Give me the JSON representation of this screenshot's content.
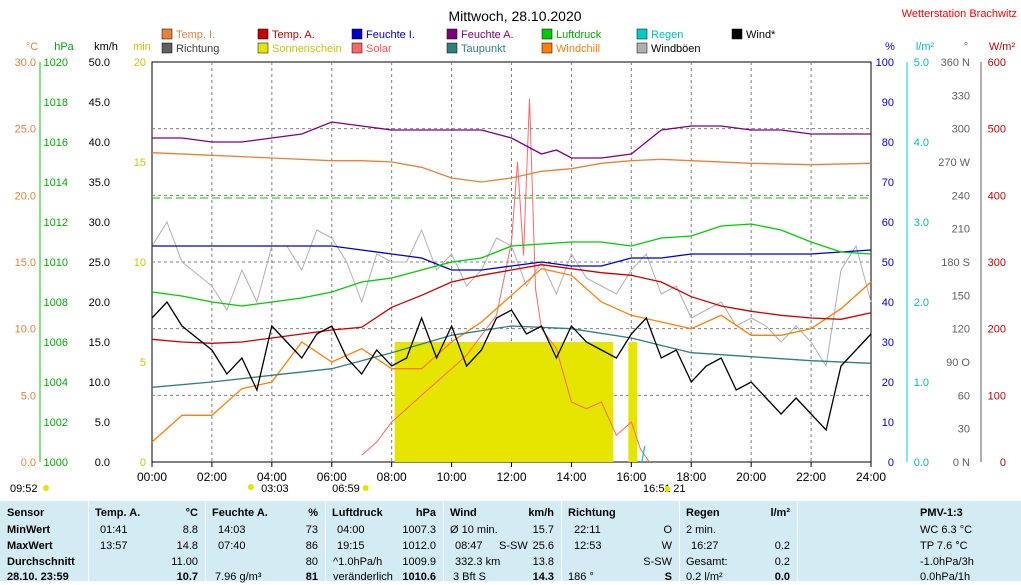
{
  "header": {
    "title": "Mittwoch, 28.10.2020",
    "station": "Wetterstation Brachwitz"
  },
  "colors": {
    "temp_in": "#e8803a",
    "temp_out": "#cc0000",
    "hum_in": "#0000cc",
    "hum_out": "#800080",
    "pressure": "#00cc00",
    "rain": "#00cccc",
    "wind": "#000000",
    "direction": "#606060",
    "sunshine": "#e5e500",
    "solar": "#ff6666",
    "dewpoint": "#2f7f7f",
    "windchill": "#ff8000",
    "gust": "#b0b0b0",
    "table_bg": "#d3ecf4"
  },
  "legend": [
    {
      "label": "Temp. I.",
      "color": "#e8803a",
      "text_color": "#e8803a"
    },
    {
      "label": "Temp. A.",
      "color": "#cc0000",
      "text_color": "#cc0000"
    },
    {
      "label": "Feuchte I.",
      "color": "#0000cc",
      "text_color": "#0000cc"
    },
    {
      "label": "Feuchte A.",
      "color": "#800080",
      "text_color": "#800080"
    },
    {
      "label": "Luftdruck",
      "color": "#00cc00",
      "text_color": "#00aa00"
    },
    {
      "label": "Regen",
      "color": "#00cccc",
      "text_color": "#00bbbb"
    },
    {
      "label": "Wind*",
      "color": "#000000",
      "text_color": "#000000"
    },
    {
      "label": "Richtung",
      "color": "#606060",
      "text_color": "#404040"
    },
    {
      "label": "Sonnenschein",
      "color": "#e5e500",
      "text_color": "#c8c800"
    },
    {
      "label": "Solar",
      "color": "#ff6666",
      "text_color": "#ff5050"
    },
    {
      "label": "Taupunkt",
      "color": "#2f7f7f",
      "text_color": "#2f7f7f"
    },
    {
      "label": "Windchill",
      "color": "#ff8000",
      "text_color": "#ff8000"
    },
    {
      "label": "Windböen",
      "color": "#b0b0b0",
      "text_color": "#000000"
    }
  ],
  "chart_data": {
    "type": "line",
    "title": "Mittwoch, 28.10.2020",
    "x_ticks": [
      "00:00",
      "02:00",
      "04:00",
      "06:00",
      "08:00",
      "10:00",
      "12:00",
      "14:00",
      "16:00",
      "18:00",
      "20:00",
      "22:00",
      "24:00"
    ],
    "xlim": [
      0,
      24
    ],
    "axes": [
      {
        "unit": "°C",
        "range": [
          0,
          30
        ],
        "ticks": [
          "0.0",
          "5.0",
          "10.0",
          "15.0",
          "20.0",
          "25.0",
          "30.0"
        ],
        "color": "#e8803a"
      },
      {
        "unit": "hPa",
        "range": [
          1000,
          1020
        ],
        "ticks": [
          "1000",
          "1002",
          "1004",
          "1006",
          "1008",
          "1010",
          "1012",
          "1014",
          "1016",
          "1018",
          "1020"
        ],
        "color": "#00aa00"
      },
      {
        "unit": "km/h",
        "range": [
          0,
          50
        ],
        "ticks": [
          "0.0",
          "5.0",
          "10.0",
          "15.0",
          "20.0",
          "25.0",
          "30.0",
          "35.0",
          "40.0",
          "45.0",
          "50.0"
        ],
        "color": "#000000"
      },
      {
        "unit": "min",
        "range": [
          0,
          20
        ],
        "ticks": [
          "0",
          "5",
          "10",
          "15",
          "20"
        ],
        "color": "#c8c800"
      },
      {
        "unit": "%",
        "range": [
          0,
          100
        ],
        "ticks": [
          "0",
          "10",
          "20",
          "30",
          "40",
          "50",
          "60",
          "70",
          "80",
          "90",
          "100"
        ],
        "color": "#0000cc"
      },
      {
        "unit": "l/m²",
        "range": [
          0,
          5
        ],
        "ticks": [
          "0.0",
          "1.0",
          "2.0",
          "3.0",
          "4.0",
          "5.0"
        ],
        "color": "#00bbbb"
      },
      {
        "unit": "°",
        "range": [
          0,
          360
        ],
        "ticks": [
          "0 N",
          "30",
          "60",
          "90 O",
          "120",
          "150",
          "180 S",
          "210",
          "240",
          "270 W",
          "300",
          "330",
          "360 N"
        ],
        "color": "#606060"
      },
      {
        "unit": "W/m²",
        "range": [
          0,
          600
        ],
        "ticks": [
          "0",
          "100",
          "200",
          "300",
          "400",
          "500",
          "600"
        ],
        "color": "#cc0000"
      }
    ],
    "series": [
      {
        "name": "Temp. I.",
        "axis": "°C",
        "x": [
          0,
          2,
          4,
          6,
          7,
          8,
          9,
          10,
          11,
          12,
          13,
          14,
          15,
          16,
          17,
          18,
          20,
          22,
          24
        ],
        "y": [
          23.2,
          23,
          22.8,
          22.6,
          22.6,
          22.5,
          22.1,
          21.3,
          21.0,
          21.3,
          21.8,
          22.0,
          22.4,
          22.6,
          22.7,
          22.6,
          22.4,
          22.3,
          22.4
        ]
      },
      {
        "name": "Temp. A.",
        "axis": "°C",
        "x": [
          0,
          1,
          2,
          3,
          4,
          5,
          6,
          7,
          8,
          9,
          10,
          11,
          12,
          13,
          14,
          15,
          16,
          17,
          18,
          19,
          20,
          21,
          22,
          23,
          24
        ],
        "y": [
          9.2,
          9.0,
          8.9,
          9.0,
          9.3,
          9.6,
          9.9,
          10.1,
          11.6,
          12.5,
          13.5,
          14.0,
          14.4,
          14.8,
          14.5,
          14.2,
          14.0,
          13.5,
          12.4,
          11.7,
          11.3,
          11.0,
          10.8,
          10.7,
          11.2
        ]
      },
      {
        "name": "Feuchte I.",
        "axis": "%",
        "x": [
          0,
          2,
          4,
          6,
          7,
          8,
          9,
          10,
          11,
          12,
          13,
          14,
          15,
          16,
          17,
          18,
          20,
          22,
          24
        ],
        "y": [
          54,
          54,
          54,
          54,
          53,
          52,
          51,
          48,
          48,
          49,
          50,
          49,
          49,
          51,
          51,
          52,
          52,
          52,
          53
        ]
      },
      {
        "name": "Feuchte A.",
        "axis": "%",
        "x": [
          0,
          1,
          2,
          3,
          4,
          5,
          6,
          7,
          8,
          9,
          10,
          11,
          12,
          13,
          13.5,
          14,
          15,
          16,
          17,
          18,
          19,
          20,
          21,
          22,
          23,
          24
        ],
        "y": [
          81,
          81,
          80,
          80,
          81,
          82,
          85,
          84,
          83,
          83,
          83,
          83,
          81,
          77,
          78,
          76,
          76,
          77,
          83,
          84,
          84,
          83,
          83,
          82,
          82,
          82
        ]
      },
      {
        "name": "Luftdruck",
        "axis": "hPa",
        "x": [
          0,
          1,
          2,
          3,
          4,
          5,
          6,
          7,
          8,
          9,
          10,
          11,
          12,
          13,
          14,
          15,
          16,
          17,
          18,
          19,
          20,
          21,
          22,
          23,
          24
        ],
        "y": [
          1008.5,
          1008.3,
          1008.0,
          1007.8,
          1008.0,
          1008.2,
          1008.5,
          1009.0,
          1009.2,
          1009.6,
          1010.0,
          1010.2,
          1010.8,
          1010.9,
          1011.0,
          1011.0,
          1010.8,
          1011.2,
          1011.3,
          1011.8,
          1011.9,
          1011.6,
          1011.0,
          1010.5,
          1010.4
        ]
      },
      {
        "name": "Taupunkt",
        "axis": "°C",
        "x": [
          0,
          2,
          4,
          6,
          8,
          10,
          12,
          14,
          16,
          18,
          20,
          22,
          24
        ],
        "y": [
          5.6,
          6.0,
          6.5,
          7.0,
          8.2,
          9.5,
          10.2,
          10.0,
          9.3,
          8.2,
          7.9,
          7.6,
          7.4
        ]
      },
      {
        "name": "Windchill",
        "axis": "°C",
        "x": [
          0,
          1,
          2,
          3,
          4,
          5,
          6,
          7,
          8,
          9,
          10,
          11,
          12,
          13,
          14,
          15,
          16,
          17,
          18,
          19,
          20,
          21,
          22,
          23,
          24
        ],
        "y": [
          1.5,
          3.5,
          3.5,
          5.5,
          6.0,
          9.0,
          7.5,
          8.5,
          7.0,
          7.0,
          9.0,
          10.5,
          12.5,
          14.5,
          14.0,
          12.0,
          11.0,
          10.5,
          10.0,
          11.0,
          9.5,
          9.5,
          10.0,
          11.5,
          13.5
        ]
      },
      {
        "name": "Wind*",
        "axis": "km/h",
        "x": [
          0,
          0.5,
          1,
          2,
          2.5,
          3,
          3.5,
          4,
          4.5,
          5,
          5.5,
          6,
          6.5,
          7,
          7.5,
          8,
          8.5,
          9,
          9.5,
          10,
          10.5,
          11,
          11.5,
          12,
          12.5,
          13,
          13.5,
          14,
          14.5,
          15,
          15.5,
          16,
          16.5,
          17,
          17.5,
          18,
          18.5,
          19,
          19.5,
          20,
          20.5,
          21,
          21.5,
          22,
          22.5,
          23,
          23.5,
          24
        ],
        "y": [
          18,
          20,
          17,
          14,
          11,
          13,
          9,
          17,
          15,
          13,
          16,
          17,
          13,
          11,
          14,
          12,
          13,
          18,
          13,
          17,
          12,
          14,
          18,
          19,
          16,
          17,
          13,
          17,
          15,
          14,
          13,
          16,
          18,
          13,
          14,
          10,
          12,
          13,
          9,
          10,
          8,
          6,
          8,
          6,
          4,
          12,
          14,
          16
        ]
      },
      {
        "name": "Windböen",
        "axis": "km/h",
        "x": [
          0,
          0.5,
          1,
          2,
          2.5,
          3,
          3.5,
          4,
          4.5,
          5,
          5.5,
          6,
          6.5,
          7,
          7.5,
          8,
          8.5,
          9,
          9.5,
          10,
          10.5,
          11,
          11.5,
          12,
          12.5,
          13,
          13.5,
          14,
          14.5,
          15,
          15.5,
          16,
          16.5,
          17,
          17.5,
          18,
          18.5,
          19,
          19.5,
          20,
          20.5,
          21,
          21.5,
          22,
          22.5,
          23,
          23.5,
          24
        ],
        "y": [
          27,
          30,
          25,
          22,
          19,
          24,
          20,
          27,
          27,
          24,
          29,
          28,
          25,
          20,
          26,
          25,
          25,
          29,
          24,
          26,
          22,
          24,
          28,
          27,
          22,
          25,
          21,
          26,
          23,
          22,
          21,
          24,
          26,
          21,
          22,
          18,
          19,
          20,
          17,
          18,
          17,
          15,
          17,
          15,
          12,
          24,
          27,
          20
        ]
      },
      {
        "name": "Solar",
        "axis": "W/m²",
        "x": [
          7,
          7.5,
          8,
          8.5,
          9,
          9.5,
          10,
          10.5,
          11,
          11.5,
          12,
          12.2,
          12.4,
          12.6,
          12.8,
          13,
          13.5,
          14,
          14.5,
          15,
          15.5,
          16,
          16.3,
          16.6
        ],
        "y": [
          10,
          30,
          60,
          80,
          100,
          120,
          140,
          160,
          190,
          220,
          330,
          450,
          310,
          545,
          260,
          200,
          170,
          90,
          80,
          90,
          40,
          60,
          20,
          0
        ]
      },
      {
        "name": "Regen",
        "axis": "l/m²",
        "x": [
          16.35,
          16.45
        ],
        "y": [
          0,
          0.2
        ]
      }
    ],
    "sunshine_blocks": [
      [
        8.1,
        15.4
      ],
      [
        15.9,
        16.2
      ]
    ],
    "sunshine_value_min": 6,
    "sun_markers": {
      "sunrise": "06:59",
      "sunset": "16:51",
      "start": "09:52",
      "min_marker": "03:03",
      "end_label": "21"
    }
  },
  "table": {
    "sensor": {
      "header": "Sensor",
      "rows": [
        "MinWert",
        "MaxWert",
        "Durchschnitt",
        "28.10. 23:59"
      ]
    },
    "temp": {
      "header": "Temp. A.",
      "unit": "°C",
      "r1_time": "01:41",
      "r1_val": "8.8",
      "r2_time": "13:57",
      "r2_val": "14.8",
      "r3_val": "11.00",
      "r4_val": "10.7"
    },
    "hum": {
      "header": "Feuchte A.",
      "unit": "%",
      "r1_time": "14:03",
      "r1_val": "73",
      "r2_time": "07:40",
      "r2_val": "86",
      "r3_val": "80",
      "r4_extra": "7.96 g/m³",
      "r4_val": "81"
    },
    "pressure": {
      "header": "Luftdruck",
      "unit": "hPa",
      "r1_time": "04:00",
      "r1_val": "1007.3",
      "r2_time": "19:15",
      "r2_val": "1012.0",
      "r3_time": "^1.0hPa/h",
      "r3_val": "1009.9",
      "r4_extra": "veränderlich",
      "r4_val": "1010.6"
    },
    "wind": {
      "header": "Wind",
      "unit": "km/h",
      "r1_time": "Ø 10 min.",
      "r1_val": "15.7",
      "r2_time": "08:47",
      "r2_mid": "S-SW",
      "r2_val": "25.6",
      "r3_time": "332.3 km",
      "r3_val": "13.8",
      "r4_extra": "3 Bft S",
      "r4_val": "14.3"
    },
    "dir": {
      "header": "Richtung",
      "r1_time": "22:11",
      "r1_val": "O",
      "r2_time": "12:53",
      "r2_val": "W",
      "r3_val": "S-SW",
      "r4_extra": "186 °",
      "r4_val": "S"
    },
    "rain": {
      "header": "Regen",
      "unit": "l/m²",
      "r1_time": "2 min.",
      "r2_time": "16:27",
      "r2_val": "0.2",
      "r3_time": "Gesamt:",
      "r3_val": "0.2",
      "r4_extra": "0.2 l/m²",
      "r4_val": "0.0"
    },
    "pmv": {
      "header": "PMV-1:3",
      "r1": "WC 6.3 °C",
      "r2": "TP 7.6 °C",
      "r3": "-1.0hPa/3h",
      "r4": "0.0hPa/1h"
    }
  }
}
